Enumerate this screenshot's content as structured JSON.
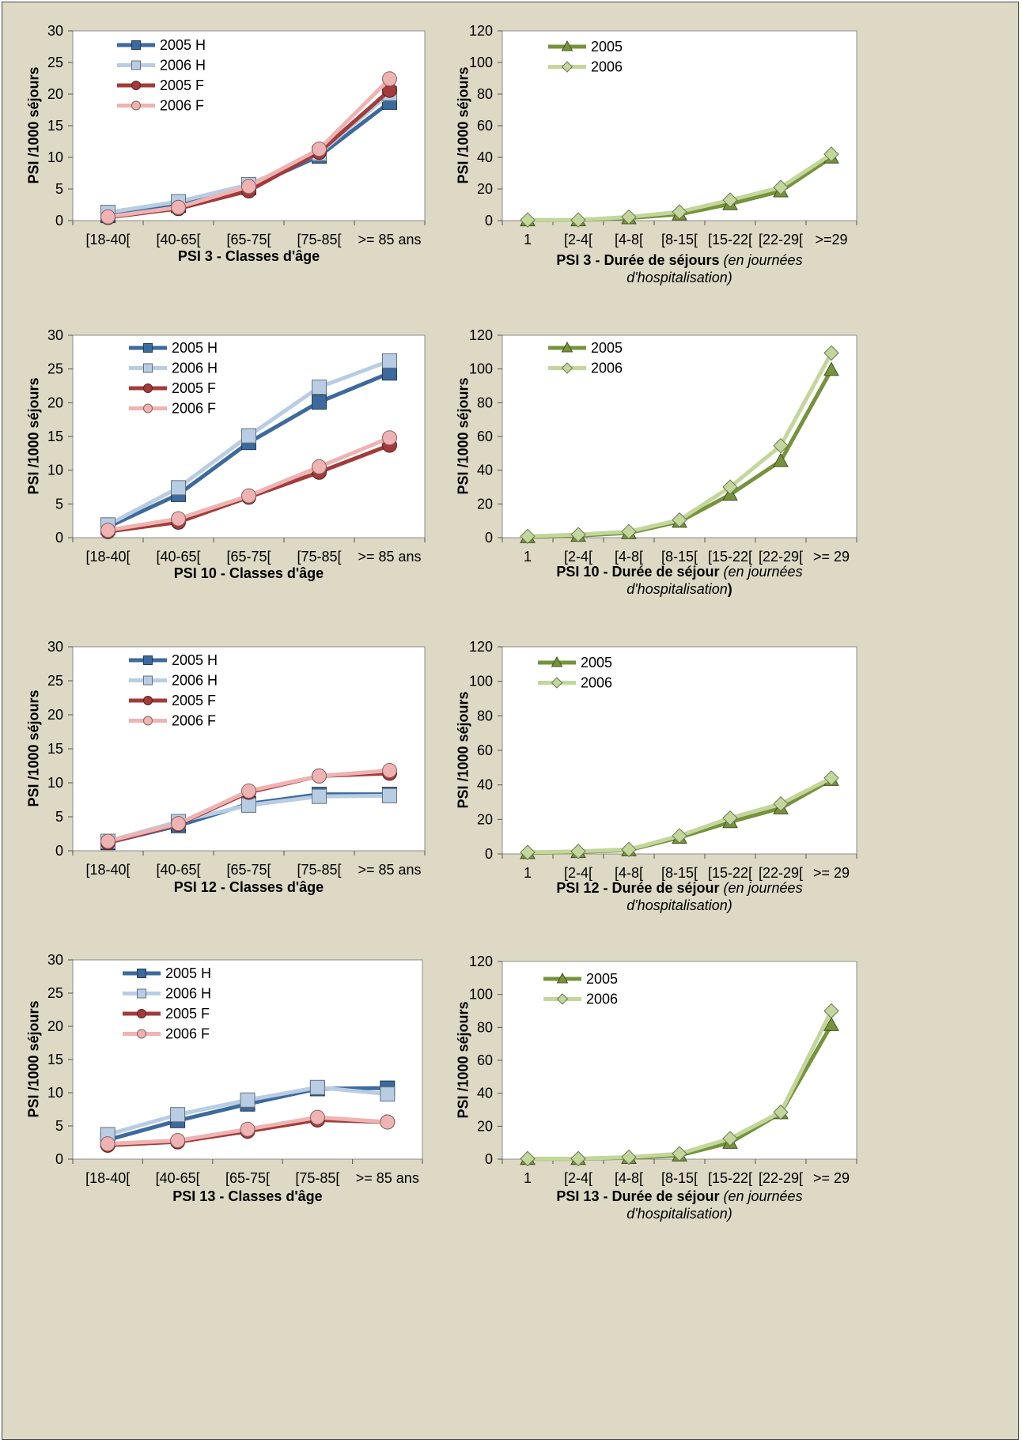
{
  "colors": {
    "background": "#ddd9c4",
    "H2005": "#3d6a9d",
    "H2006": "#b8cde4",
    "F2005": "#a33b3a",
    "F2006": "#eeb3b2",
    "D2005": "#76933c",
    "D2006": "#c3d69b"
  },
  "y_label": "PSI /1000 séjours",
  "chart_data": [
    {
      "id": "psi3-age",
      "type": "line",
      "categories": [
        "[18-40[",
        "[40-65[",
        "[65-75[",
        "[75-85[",
        ">= 85 ans"
      ],
      "ylim": [
        0,
        30
      ],
      "yticks": [
        0,
        5,
        10,
        15,
        20,
        25,
        30
      ],
      "ylabel": "PSI /1000 séjours",
      "caption_bold": "PSI 3 - Classes d'âge",
      "caption_italic": "",
      "caption_line2": "",
      "caption_tail": "",
      "series": [
        {
          "name": "2005 H",
          "values": [
            0.8,
            2.4,
            5.2,
            10.2,
            18.7
          ]
        },
        {
          "name": "2006 H",
          "values": [
            1.3,
            3.0,
            5.7,
            10.6,
            20.1
          ]
        },
        {
          "name": "2005 F",
          "values": [
            0.5,
            1.9,
            4.7,
            10.8,
            20.6
          ]
        },
        {
          "name": "2006 F",
          "values": [
            0.6,
            2.1,
            5.4,
            11.3,
            22.4
          ]
        }
      ]
    },
    {
      "id": "psi3-duree",
      "type": "line",
      "categories": [
        "1",
        "[2-4[",
        "[4-8[",
        "[8-15[",
        "[15-22[",
        "[22-29[",
        ">=29"
      ],
      "ylim": [
        0,
        120
      ],
      "yticks": [
        0,
        20,
        40,
        60,
        80,
        100,
        120
      ],
      "ylabel": "PSI /1000 séjours",
      "caption_bold": "PSI 3 - Durée de séjours",
      "caption_italic": " (en journées",
      "caption_line2": "d'hospitalisation)",
      "caption_tail": "",
      "series": [
        {
          "name": "2005",
          "values": [
            0.3,
            0.3,
            1.6,
            4.0,
            10.5,
            18.6,
            40.0
          ]
        },
        {
          "name": "2006",
          "values": [
            0.4,
            0.4,
            2.3,
            5.5,
            13.0,
            21.0,
            42.0
          ]
        }
      ]
    },
    {
      "id": "psi10-age",
      "type": "line",
      "categories": [
        "[18-40[",
        "[40-65[",
        "[65-75[",
        "[75-85[",
        ">= 85 ans"
      ],
      "ylim": [
        0,
        30
      ],
      "yticks": [
        0,
        5,
        10,
        15,
        20,
        25,
        30
      ],
      "ylabel": "PSI /1000 séjours",
      "caption_bold": "PSI 10 - Classes d'âge",
      "caption_italic": "",
      "caption_line2": "",
      "caption_tail": "",
      "series": [
        {
          "name": "2005 H",
          "values": [
            1.6,
            6.4,
            14.1,
            20.1,
            24.4
          ]
        },
        {
          "name": "2006 H",
          "values": [
            1.9,
            7.4,
            15.1,
            22.3,
            26.2
          ]
        },
        {
          "name": "2005 F",
          "values": [
            0.9,
            2.3,
            6.0,
            9.7,
            13.7
          ]
        },
        {
          "name": "2006 F",
          "values": [
            1.1,
            2.8,
            6.2,
            10.5,
            14.8
          ]
        }
      ]
    },
    {
      "id": "psi10-duree",
      "type": "line",
      "categories": [
        "1",
        "[2-4[",
        "[4-8[",
        "[8-15[",
        "[15-22[",
        "[22-29[",
        ">= 29"
      ],
      "ylim": [
        0,
        120
      ],
      "yticks": [
        0,
        20,
        40,
        60,
        80,
        100,
        120
      ],
      "ylabel": "PSI /1000 séjours",
      "caption_bold": "PSI 10 - Durée de séjour",
      "caption_italic": " (en journées",
      "caption_line2": "d'hospitalisation",
      "caption_tail": ")",
      "series": [
        {
          "name": "2005",
          "values": [
            0.4,
            1.2,
            2.8,
            9.5,
            25.5,
            45.5,
            99.5
          ]
        },
        {
          "name": "2006",
          "values": [
            0.8,
            1.8,
            3.6,
            10.5,
            30.0,
            54.5,
            109.5
          ]
        }
      ]
    },
    {
      "id": "psi12-age",
      "type": "line",
      "categories": [
        "[18-40[",
        "[40-65[",
        "[65-75[",
        "[75-85[",
        ">= 85 ans"
      ],
      "ylim": [
        0,
        30
      ],
      "yticks": [
        0,
        5,
        10,
        15,
        20,
        25,
        30
      ],
      "ylabel": "PSI /1000 séjours",
      "caption_bold": "PSI 12 - Classes d'âge",
      "caption_italic": "",
      "caption_line2": "",
      "caption_tail": "",
      "series": [
        {
          "name": "2005 H",
          "values": [
            1.2,
            3.7,
            6.9,
            8.3,
            8.3
          ]
        },
        {
          "name": "2006 H",
          "values": [
            1.4,
            4.3,
            6.7,
            8.0,
            8.1
          ]
        },
        {
          "name": "2005 F",
          "values": [
            1.2,
            3.9,
            8.6,
            11.0,
            11.4
          ]
        },
        {
          "name": "2006 F",
          "values": [
            1.4,
            4.0,
            8.8,
            11.0,
            11.8
          ]
        }
      ]
    },
    {
      "id": "psi12-duree",
      "type": "line",
      "categories": [
        "1",
        "[2-4[",
        "[4-8[",
        "[8-15[",
        "[15-22[",
        "[22-29[",
        ">= 29"
      ],
      "ylim": [
        0,
        120
      ],
      "yticks": [
        0,
        20,
        40,
        60,
        80,
        100,
        120
      ],
      "ylabel": "PSI /1000 séjours",
      "caption_bold": "PSI 12 - Durée de séjour",
      "caption_italic": " (en journées",
      "caption_line2": "d'hospitalisation)",
      "caption_tail": "",
      "series": [
        {
          "name": "2005",
          "values": [
            0.6,
            1.2,
            2.2,
            9.5,
            18.5,
            26.5,
            43.0
          ]
        },
        {
          "name": "2006",
          "values": [
            0.9,
            1.5,
            2.6,
            10.5,
            20.8,
            29.0,
            44.0
          ]
        }
      ]
    },
    {
      "id": "psi13-age",
      "type": "line",
      "categories": [
        "[18-40[",
        "[40-65[",
        "[65-75[",
        "[75-85[",
        ">= 85 ans"
      ],
      "ylim": [
        0,
        30
      ],
      "yticks": [
        0,
        5,
        10,
        15,
        20,
        25,
        30
      ],
      "ylabel": "PSI /1000 séjours",
      "caption_bold": "PSI 13 - Classes d'âge",
      "caption_italic": "",
      "caption_line2": "",
      "caption_tail": "",
      "series": [
        {
          "name": "2005 H",
          "values": [
            2.9,
            5.8,
            8.3,
            10.6,
            10.7
          ]
        },
        {
          "name": "2006 H",
          "values": [
            3.7,
            6.7,
            8.9,
            10.8,
            9.8
          ]
        },
        {
          "name": "2005 F",
          "values": [
            2.1,
            2.6,
            4.2,
            5.9,
            5.6
          ]
        },
        {
          "name": "2006 F",
          "values": [
            2.3,
            2.8,
            4.5,
            6.3,
            5.6
          ]
        }
      ]
    },
    {
      "id": "psi13-duree",
      "type": "line",
      "categories": [
        "1",
        "[2-4[",
        "[4-8[",
        "[8-15[",
        "[15-22[",
        "[22-29[",
        ">= 29"
      ],
      "ylim": [
        0,
        120
      ],
      "yticks": [
        0,
        20,
        40,
        60,
        80,
        100,
        120
      ],
      "ylabel": "PSI /1000 séjours",
      "caption_bold": "PSI 13 - Durée de séjour",
      "caption_italic": " (en journées",
      "caption_line2": "d'hospitalisation)",
      "caption_tail": "",
      "series": [
        {
          "name": "2005",
          "values": [
            0.2,
            0.2,
            0.8,
            2.3,
            10.0,
            28.0,
            81.5
          ]
        },
        {
          "name": "2006",
          "values": [
            0.3,
            0.3,
            1.2,
            3.3,
            12.5,
            28.5,
            90.0
          ]
        }
      ]
    }
  ]
}
